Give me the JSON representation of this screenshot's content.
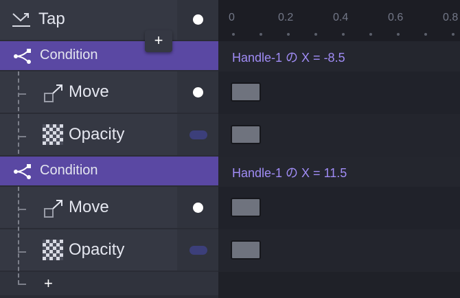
{
  "trigger": {
    "label": "Tap",
    "icon": "tap-gesture-icon"
  },
  "groups": [
    {
      "label": "Condition",
      "expression": "Handle-1 の X = -8.5",
      "children": [
        {
          "label": "Move",
          "icon": "move-icon",
          "status": "dot"
        },
        {
          "label": "Opacity",
          "icon": "opacity-icon",
          "status": "pill"
        }
      ]
    },
    {
      "label": "Condition",
      "expression": "Handle-1 の X = 11.5",
      "children": [
        {
          "label": "Move",
          "icon": "move-icon",
          "status": "dot"
        },
        {
          "label": "Opacity",
          "icon": "opacity-icon",
          "status": "pill"
        }
      ]
    }
  ],
  "add_label": "+",
  "ruler": {
    "ticks": [
      "0",
      "0.2",
      "0.4",
      "0.6",
      "0.8"
    ]
  },
  "colors": {
    "condition": "#5a48a3",
    "expression": "#a08cf5",
    "keyframe": "#6f737e"
  }
}
